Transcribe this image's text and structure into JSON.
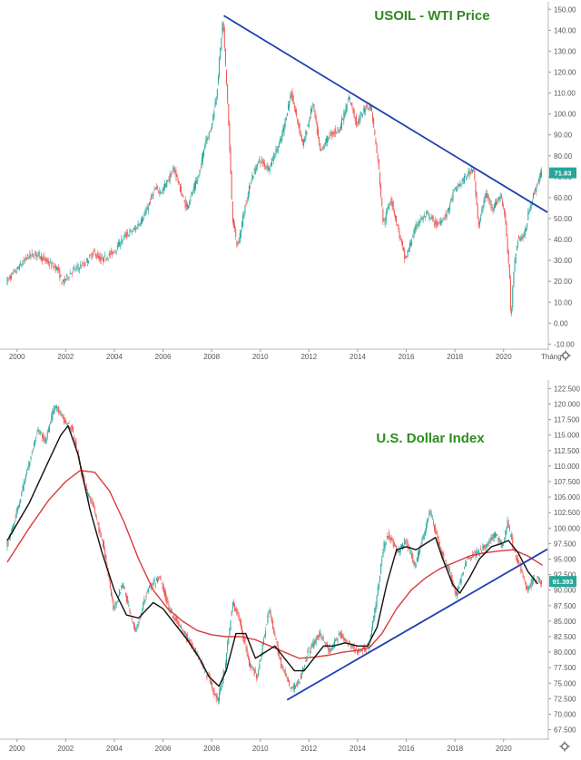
{
  "colors": {
    "up_candle": "#26a69a",
    "down_candle": "#ef5350",
    "trendline": "#1f3fae",
    "ma_fast": "#111111",
    "ma_slow": "#d93a3a",
    "title_green": "#2e8b1e",
    "price_label_bg": "#26a69a"
  },
  "icons": [
    "settings-gear-icon"
  ],
  "chart_data": [
    {
      "type": "candlestick",
      "title": "USOIL - WTI Price",
      "x_axis_label": "Tháng",
      "xlim": [
        1999.6,
        2021.8
      ],
      "ylim": [
        -12,
        151
      ],
      "y_ticks": [
        "150.00",
        "140.00",
        "130.00",
        "120.00",
        "110.00",
        "100.00",
        "90.00",
        "80.00",
        "70.00",
        "60.00",
        "50.00",
        "40.00",
        "30.00",
        "20.00",
        "10.00",
        "0.00",
        "-10.00"
      ],
      "x_ticks": [
        "2000",
        "2002",
        "2004",
        "2006",
        "2008",
        "2010",
        "2012",
        "2014",
        "2016",
        "2018",
        "2020"
      ],
      "last_price_label": "71.83",
      "last_price": 71.83,
      "price_path": [
        [
          1999.6,
          20
        ],
        [
          2000.0,
          25
        ],
        [
          2000.5,
          32
        ],
        [
          2000.9,
          33
        ],
        [
          2001.3,
          29
        ],
        [
          2001.7,
          26
        ],
        [
          2001.9,
          19
        ],
        [
          2002.3,
          25
        ],
        [
          2002.8,
          28
        ],
        [
          2003.2,
          34
        ],
        [
          2003.5,
          30
        ],
        [
          2004.0,
          34
        ],
        [
          2004.5,
          42
        ],
        [
          2004.9,
          45
        ],
        [
          2005.3,
          52
        ],
        [
          2005.7,
          64
        ],
        [
          2006.0,
          63
        ],
        [
          2006.5,
          74
        ],
        [
          2006.8,
          62
        ],
        [
          2007.0,
          55
        ],
        [
          2007.5,
          70
        ],
        [
          2007.8,
          88
        ],
        [
          2008.0,
          92
        ],
        [
          2008.25,
          110
        ],
        [
          2008.5,
          145
        ],
        [
          2008.7,
          105
        ],
        [
          2008.9,
          50
        ],
        [
          2009.1,
          36
        ],
        [
          2009.4,
          55
        ],
        [
          2009.7,
          70
        ],
        [
          2010.0,
          78
        ],
        [
          2010.4,
          74
        ],
        [
          2010.6,
          80
        ],
        [
          2010.9,
          88
        ],
        [
          2011.3,
          110
        ],
        [
          2011.5,
          100
        ],
        [
          2011.8,
          85
        ],
        [
          2012.2,
          105
        ],
        [
          2012.5,
          82
        ],
        [
          2012.9,
          90
        ],
        [
          2013.3,
          93
        ],
        [
          2013.7,
          108
        ],
        [
          2014.0,
          95
        ],
        [
          2014.4,
          104
        ],
        [
          2014.6,
          103
        ],
        [
          2014.9,
          75
        ],
        [
          2015.1,
          47
        ],
        [
          2015.4,
          60
        ],
        [
          2015.7,
          45
        ],
        [
          2016.0,
          30
        ],
        [
          2016.2,
          38
        ],
        [
          2016.5,
          48
        ],
        [
          2016.9,
          52
        ],
        [
          2017.3,
          47
        ],
        [
          2017.7,
          52
        ],
        [
          2018.0,
          63
        ],
        [
          2018.5,
          70
        ],
        [
          2018.8,
          75
        ],
        [
          2019.0,
          46
        ],
        [
          2019.3,
          62
        ],
        [
          2019.6,
          55
        ],
        [
          2019.9,
          61
        ],
        [
          2020.1,
          52
        ],
        [
          2020.3,
          18
        ],
        [
          2020.35,
          0
        ],
        [
          2020.45,
          25
        ],
        [
          2020.6,
          40
        ],
        [
          2020.9,
          42
        ],
        [
          2021.1,
          55
        ],
        [
          2021.4,
          66
        ],
        [
          2021.6,
          72
        ]
      ],
      "trendline": {
        "from": [
          2008.5,
          147
        ],
        "to": [
          2021.8,
          53
        ]
      }
    },
    {
      "type": "candlestick",
      "title": "U.S. Dollar Index",
      "xlim": [
        1999.6,
        2021.8
      ],
      "ylim": [
        67,
        123
      ],
      "y_ticks": [
        "122.500",
        "120.000",
        "117.500",
        "115.000",
        "112.500",
        "110.000",
        "107.500",
        "105.000",
        "102.500",
        "100.000",
        "97.500",
        "95.000",
        "92.500",
        "90.000",
        "87.500",
        "85.000",
        "82.500",
        "80.000",
        "77.500",
        "75.000",
        "72.500",
        "70.000",
        "67.500"
      ],
      "x_ticks": [
        "2000",
        "2002",
        "2004",
        "2006",
        "2008",
        "2010",
        "2012",
        "2014",
        "2016",
        "2018",
        "2020"
      ],
      "last_price_label": "91.393",
      "last_price": 91.393,
      "price_path": [
        [
          1999.6,
          97
        ],
        [
          2000.0,
          102
        ],
        [
          2000.5,
          110
        ],
        [
          2000.9,
          116
        ],
        [
          2001.2,
          114
        ],
        [
          2001.6,
          120
        ],
        [
          2002.0,
          117
        ],
        [
          2002.3,
          116
        ],
        [
          2002.8,
          107
        ],
        [
          2003.2,
          103
        ],
        [
          2003.6,
          97
        ],
        [
          2004.0,
          87
        ],
        [
          2004.4,
          91
        ],
        [
          2004.9,
          83
        ],
        [
          2005.4,
          90
        ],
        [
          2005.9,
          92
        ],
        [
          2006.3,
          87
        ],
        [
          2006.9,
          83
        ],
        [
          2007.4,
          80
        ],
        [
          2007.9,
          76
        ],
        [
          2008.3,
          72
        ],
        [
          2008.6,
          78
        ],
        [
          2008.9,
          88
        ],
        [
          2009.2,
          85
        ],
        [
          2009.6,
          78
        ],
        [
          2009.9,
          76
        ],
        [
          2010.4,
          87
        ],
        [
          2010.6,
          83
        ],
        [
          2010.9,
          78
        ],
        [
          2011.3,
          74
        ],
        [
          2011.6,
          75
        ],
        [
          2012.0,
          80
        ],
        [
          2012.5,
          83
        ],
        [
          2012.9,
          80
        ],
        [
          2013.3,
          83
        ],
        [
          2013.7,
          81
        ],
        [
          2014.1,
          80
        ],
        [
          2014.5,
          81
        ],
        [
          2014.8,
          88
        ],
        [
          2015.1,
          97
        ],
        [
          2015.3,
          99
        ],
        [
          2015.7,
          96
        ],
        [
          2016.0,
          98
        ],
        [
          2016.4,
          94
        ],
        [
          2016.9,
          101
        ],
        [
          2017.0,
          103
        ],
        [
          2017.4,
          97
        ],
        [
          2017.8,
          93
        ],
        [
          2018.1,
          89
        ],
        [
          2018.5,
          95
        ],
        [
          2018.9,
          96
        ],
        [
          2019.3,
          97
        ],
        [
          2019.7,
          99
        ],
        [
          2020.0,
          97
        ],
        [
          2020.2,
          101
        ],
        [
          2020.5,
          96
        ],
        [
          2020.8,
          93
        ],
        [
          2021.0,
          90
        ],
        [
          2021.3,
          92
        ],
        [
          2021.6,
          91.4
        ]
      ],
      "ma_fast": [
        [
          1999.6,
          98
        ],
        [
          2000.5,
          104
        ],
        [
          2001.2,
          110
        ],
        [
          2001.8,
          115
        ],
        [
          2002.1,
          116.5
        ],
        [
          2002.5,
          112
        ],
        [
          2003.0,
          103
        ],
        [
          2003.5,
          96
        ],
        [
          2004.0,
          90
        ],
        [
          2004.5,
          86
        ],
        [
          2005.0,
          85.5
        ],
        [
          2005.6,
          88
        ],
        [
          2006.0,
          87
        ],
        [
          2006.5,
          84.5
        ],
        [
          2007.0,
          82
        ],
        [
          2007.5,
          79
        ],
        [
          2007.9,
          76
        ],
        [
          2008.3,
          74.5
        ],
        [
          2008.6,
          77
        ],
        [
          2009.0,
          83
        ],
        [
          2009.4,
          83
        ],
        [
          2009.8,
          79
        ],
        [
          2010.2,
          80
        ],
        [
          2010.6,
          81
        ],
        [
          2011.0,
          79
        ],
        [
          2011.4,
          77
        ],
        [
          2011.8,
          77
        ],
        [
          2012.2,
          79
        ],
        [
          2012.6,
          81
        ],
        [
          2013.0,
          81
        ],
        [
          2013.5,
          81.5
        ],
        [
          2014.0,
          81
        ],
        [
          2014.4,
          81
        ],
        [
          2014.8,
          84
        ],
        [
          2015.2,
          91
        ],
        [
          2015.6,
          96.5
        ],
        [
          2016.0,
          97
        ],
        [
          2016.4,
          96.5
        ],
        [
          2016.8,
          97.5
        ],
        [
          2017.2,
          98.5
        ],
        [
          2017.5,
          95
        ],
        [
          2017.9,
          91
        ],
        [
          2018.2,
          89.5
        ],
        [
          2018.6,
          92
        ],
        [
          2019.0,
          95
        ],
        [
          2019.5,
          97
        ],
        [
          2019.9,
          97.5
        ],
        [
          2020.2,
          98
        ],
        [
          2020.6,
          96
        ],
        [
          2021.0,
          93
        ],
        [
          2021.4,
          91
        ]
      ],
      "ma_slow": [
        [
          1999.6,
          94.5
        ],
        [
          2000.5,
          100
        ],
        [
          2001.3,
          104.5
        ],
        [
          2002.0,
          107.5
        ],
        [
          2002.6,
          109.3
        ],
        [
          2003.2,
          109
        ],
        [
          2003.8,
          106
        ],
        [
          2004.4,
          101
        ],
        [
          2005.0,
          95
        ],
        [
          2005.6,
          90
        ],
        [
          2006.2,
          87
        ],
        [
          2006.8,
          85
        ],
        [
          2007.4,
          83.5
        ],
        [
          2008.0,
          82.8
        ],
        [
          2008.6,
          82.5
        ],
        [
          2009.2,
          82.5
        ],
        [
          2009.8,
          82
        ],
        [
          2010.4,
          81
        ],
        [
          2011.0,
          80
        ],
        [
          2011.6,
          79
        ],
        [
          2012.2,
          79.2
        ],
        [
          2012.8,
          79.5
        ],
        [
          2013.4,
          80
        ],
        [
          2014.0,
          80.3
        ],
        [
          2014.5,
          80.8
        ],
        [
          2015.0,
          83
        ],
        [
          2015.6,
          87
        ],
        [
          2016.2,
          90
        ],
        [
          2016.8,
          92
        ],
        [
          2017.4,
          93.5
        ],
        [
          2018.0,
          94.5
        ],
        [
          2018.6,
          95.5
        ],
        [
          2019.2,
          96
        ],
        [
          2019.8,
          96.3
        ],
        [
          2020.4,
          96.5
        ],
        [
          2021.0,
          95.5
        ],
        [
          2021.6,
          94
        ]
      ],
      "trendline": {
        "from": [
          2011.1,
          72.3
        ],
        "to": [
          2021.8,
          96.6
        ]
      }
    }
  ]
}
